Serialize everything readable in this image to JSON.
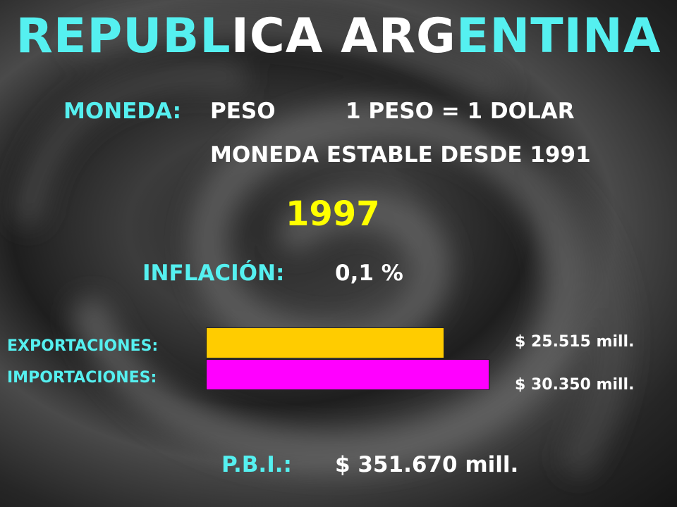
{
  "title": {
    "part1": "REPUBL",
    "part2": "ICA ARG",
    "part3": "ENTINA"
  },
  "moneda": {
    "label": "MONEDA:",
    "value": "PESO",
    "rate": "1 PESO = 1 DOLAR",
    "note": "MONEDA ESTABLE DESDE 1991"
  },
  "year": "1997",
  "inflacion": {
    "label": "INFLACIÓN:",
    "value": "0,1 %"
  },
  "trade": {
    "exportaciones": {
      "label": "EXPORTACIONES:",
      "value_text": "$ 25.515 mill.",
      "value": 25515,
      "color": "#ffcc00"
    },
    "importaciones": {
      "label": "IMPORTACIONES:",
      "value_text": "$ 30.350 mill.",
      "value": 30350,
      "color": "#ff00ff"
    }
  },
  "pbi": {
    "label": "P.B.I.:",
    "value": "$ 351.670 mill."
  }
}
